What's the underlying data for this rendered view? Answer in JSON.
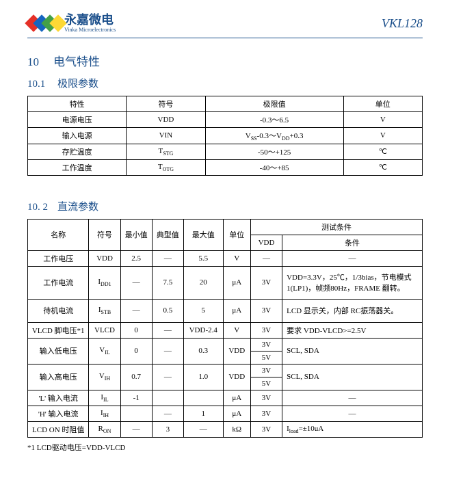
{
  "header": {
    "logo_cn": "永嘉微电",
    "logo_en": "Vinka Microelectronics",
    "part_no": "VKL128",
    "logo_colors": [
      "#e53027",
      "#1565c0",
      "#43a047",
      "#fdd835"
    ],
    "accent_color": "#1b4f8b"
  },
  "section10": {
    "num": "10",
    "title": "电气特性"
  },
  "section10_1": {
    "num": "10.1",
    "title": "极限参数",
    "table": {
      "headers": [
        "特性",
        "符号",
        "极限值",
        "单位"
      ],
      "col_widths": [
        "25%",
        "20%",
        "35%",
        "20%"
      ],
      "rows": [
        {
          "c0": "电源电压",
          "c1": "VDD",
          "c2": "-0.3～6.5",
          "c3": "V",
          "sub": ""
        },
        {
          "c0": "输入电源",
          "c1": "VIN",
          "c2": "V_SS-0.3～V_DD+0.3",
          "c3": "V"
        },
        {
          "c0": "存贮温度",
          "c1": "T_STG",
          "c2": "-50～+125",
          "c3": "℃"
        },
        {
          "c0": "工作温度",
          "c1": "T_OTG",
          "c2": "-40～+85",
          "c3": "℃"
        }
      ]
    }
  },
  "section10_2": {
    "num": "10. 2",
    "title": "直流参数",
    "table": {
      "head": {
        "name": "名称",
        "sym": "符号",
        "min": "最小值",
        "typ": "典型值",
        "max": "最大值",
        "unit": "单位",
        "cond": "测试条件",
        "vdd": "VDD",
        "cond2": "条件"
      },
      "rows": [
        {
          "name": "工作电压",
          "sym": "VDD",
          "min": "2.5",
          "typ": "—",
          "max": "5.5",
          "unit": "V",
          "vdd": "—",
          "cond": "—"
        },
        {
          "name": "工作电流",
          "sym": "I_DD1",
          "min": "—",
          "typ": "7.5",
          "max": "20",
          "unit": "μA",
          "vdd": "3V",
          "cond": "VDD=3.3V，25℃，1/3bias，节电模式1(LP1)，帧频80Hz，FRAME 翻转。"
        },
        {
          "name": "待机电流",
          "sym": "I_STB",
          "min": "—",
          "typ": "0.5",
          "max": "5",
          "unit": "μA",
          "vdd": "3V",
          "cond": "LCD 显示关，内部 RC振荡器关。"
        },
        {
          "name": "VLCD 脚电压*1",
          "sym": "VLCD",
          "min": "0",
          "typ": "—",
          "max": "VDD-2.4",
          "unit": "V",
          "vdd": "3V",
          "cond": "要求 VDD-VLCD>=2.5V"
        },
        {
          "name": "输入低电压",
          "sym": "V_IL",
          "min": "0",
          "typ": "—",
          "max": "0.3",
          "unit": "VDD",
          "vdd": [
            "3V",
            "5V"
          ],
          "cond": "SCL, SDA",
          "split": true
        },
        {
          "name": "输入高电压",
          "sym": "V_IH",
          "min": "0.7",
          "typ": "—",
          "max": "1.0",
          "unit": "VDD",
          "vdd": [
            "3V",
            "5V"
          ],
          "cond": "SCL, SDA",
          "split": true
        },
        {
          "name": "'L' 输入电流",
          "sym": "I_IL",
          "min": "-1",
          "typ": "",
          "max": "",
          "unit": "μA",
          "vdd": "3V",
          "cond": "—"
        },
        {
          "name": "'H' 输入电流",
          "sym": "I_IH",
          "min": "",
          "typ": "—",
          "max": "1",
          "unit": "μA",
          "vdd": "3V",
          "cond": "—"
        },
        {
          "name": "LCD ON 时阻值",
          "sym": "R_ON",
          "min": "—",
          "typ": "3",
          "max": "—",
          "unit": "kΩ",
          "vdd": "3V",
          "cond": "I_load=±10uA"
        }
      ]
    },
    "footnote": "*1 LCD驱动电压=VDD-VLCD"
  }
}
